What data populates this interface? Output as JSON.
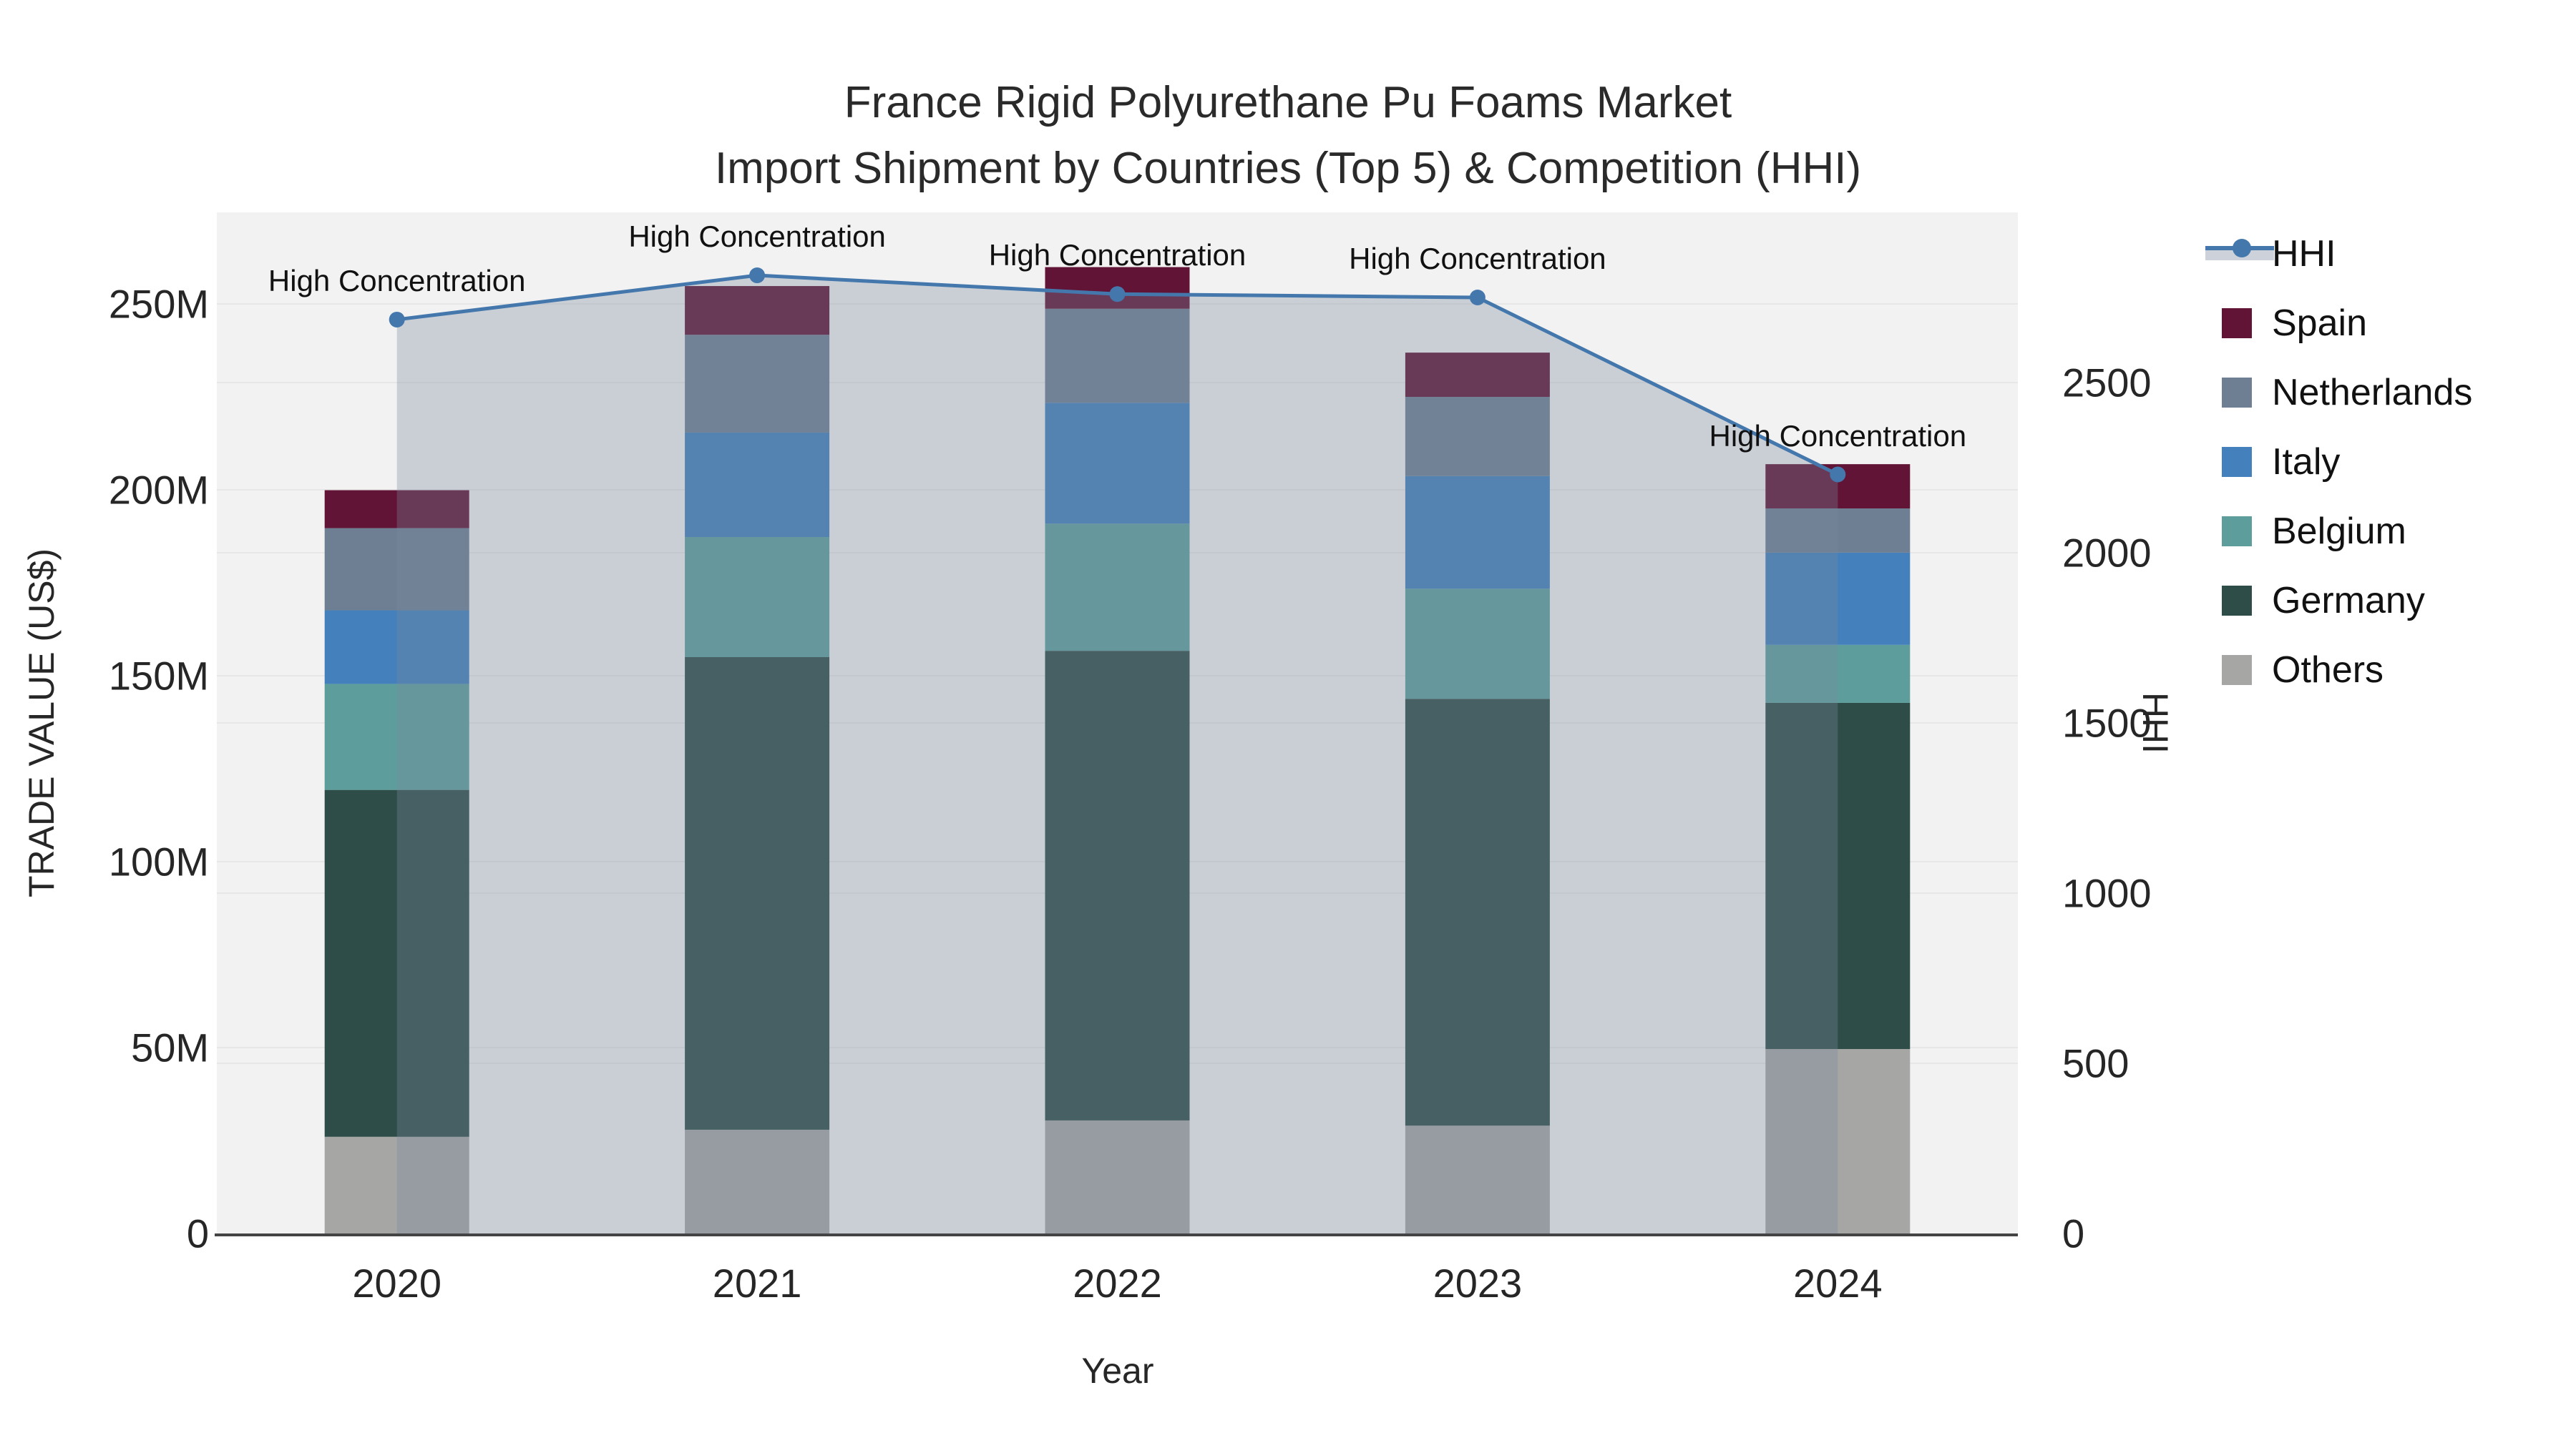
{
  "title": {
    "line1": "France Rigid Polyurethane Pu Foams Market",
    "line2": "Import Shipment by Countries (Top 5) & Competition (HHI)"
  },
  "axes": {
    "x": {
      "title": "Year",
      "categories": [
        "2020",
        "2021",
        "2022",
        "2023",
        "2024"
      ]
    },
    "y_left": {
      "title": "TRADE VALUE (US$)",
      "ticks": [
        {
          "v": 0,
          "label": "0"
        },
        {
          "v": 50,
          "label": "50M"
        },
        {
          "v": 100,
          "label": "100M"
        },
        {
          "v": 150,
          "label": "150M"
        },
        {
          "v": 200,
          "label": "200M"
        },
        {
          "v": 250,
          "label": "250M"
        }
      ]
    },
    "y_right": {
      "title": "HHI",
      "ticks": [
        {
          "v": 0,
          "label": "0"
        },
        {
          "v": 500,
          "label": "500"
        },
        {
          "v": 1000,
          "label": "1000"
        },
        {
          "v": 1500,
          "label": "1500"
        },
        {
          "v": 2000,
          "label": "2000"
        },
        {
          "v": 2500,
          "label": "2500"
        }
      ]
    }
  },
  "annotations": {
    "text": "High Concentration"
  },
  "legend": {
    "items": [
      {
        "label": "HHI",
        "type": "line",
        "color": "#4478ad"
      },
      {
        "label": "Spain",
        "type": "bar",
        "color": "#611435"
      },
      {
        "label": "Netherlands",
        "type": "bar",
        "color": "#6e7f93"
      },
      {
        "label": "Italy",
        "type": "bar",
        "color": "#4480bb"
      },
      {
        "label": "Belgium",
        "type": "bar",
        "color": "#5d9e9c"
      },
      {
        "label": "Germany",
        "type": "bar",
        "color": "#2f4d48"
      },
      {
        "label": "Others",
        "type": "bar",
        "color": "#a6a6a4"
      }
    ]
  },
  "colors": {
    "plot_background": "#f2f2f2",
    "gridline": "#e7e7e7",
    "axis_line": "#444444",
    "hhi_line": "#4478ad",
    "hhi_area_fill": "rgba(122,138,158,0.33)",
    "legend_band": "#ccd1da",
    "text": "#262626"
  },
  "chart_data": {
    "type": "bar",
    "subtype": "stacked-bars-with-line",
    "categories": [
      "2020",
      "2021",
      "2022",
      "2023",
      "2024"
    ],
    "series": [
      {
        "name": "Others",
        "type": "bar",
        "color": "#a6a6a4",
        "values": [
          26.0,
          27.9,
          30.4,
          29.0,
          49.6
        ]
      },
      {
        "name": "Germany",
        "type": "bar",
        "color": "#2f4d48",
        "values": [
          93.3,
          127.1,
          126.3,
          114.8,
          93.1
        ]
      },
      {
        "name": "Belgium",
        "type": "bar",
        "color": "#5d9e9c",
        "values": [
          28.5,
          32.3,
          34.2,
          29.6,
          15.6
        ]
      },
      {
        "name": "Italy",
        "type": "bar",
        "color": "#4480bb",
        "values": [
          19.8,
          28.1,
          32.5,
          30.3,
          24.8
        ]
      },
      {
        "name": "Netherlands",
        "type": "bar",
        "color": "#6e7f93",
        "values": [
          22.1,
          26.3,
          25.3,
          21.3,
          11.9
        ]
      },
      {
        "name": "Spain",
        "type": "bar",
        "color": "#611435",
        "values": [
          10.2,
          13.1,
          11.2,
          11.9,
          11.9
        ]
      }
    ],
    "totals": [
      199.9,
      254.8,
      259.9,
      236.9,
      206.9
    ],
    "hhi": {
      "name": "HHI",
      "type": "line",
      "color": "#4478ad",
      "area_fill": "rgba(122,138,158,0.33)",
      "values": [
        2685,
        2815,
        2760,
        2750,
        2230
      ],
      "annotation_per_point": "High Concentration"
    },
    "title": "France Rigid Polyurethane Pu Foams Market — Import Shipment by Countries (Top 5) & Competition (HHI)",
    "xlabel": "Year",
    "ylabel_left": "TRADE VALUE (US$)",
    "ylabel_right": "HHI",
    "ylim_left": [
      0,
      274.6
    ],
    "ylim_right": [
      0,
      3000
    ],
    "grid": true,
    "legend_position": "right"
  }
}
